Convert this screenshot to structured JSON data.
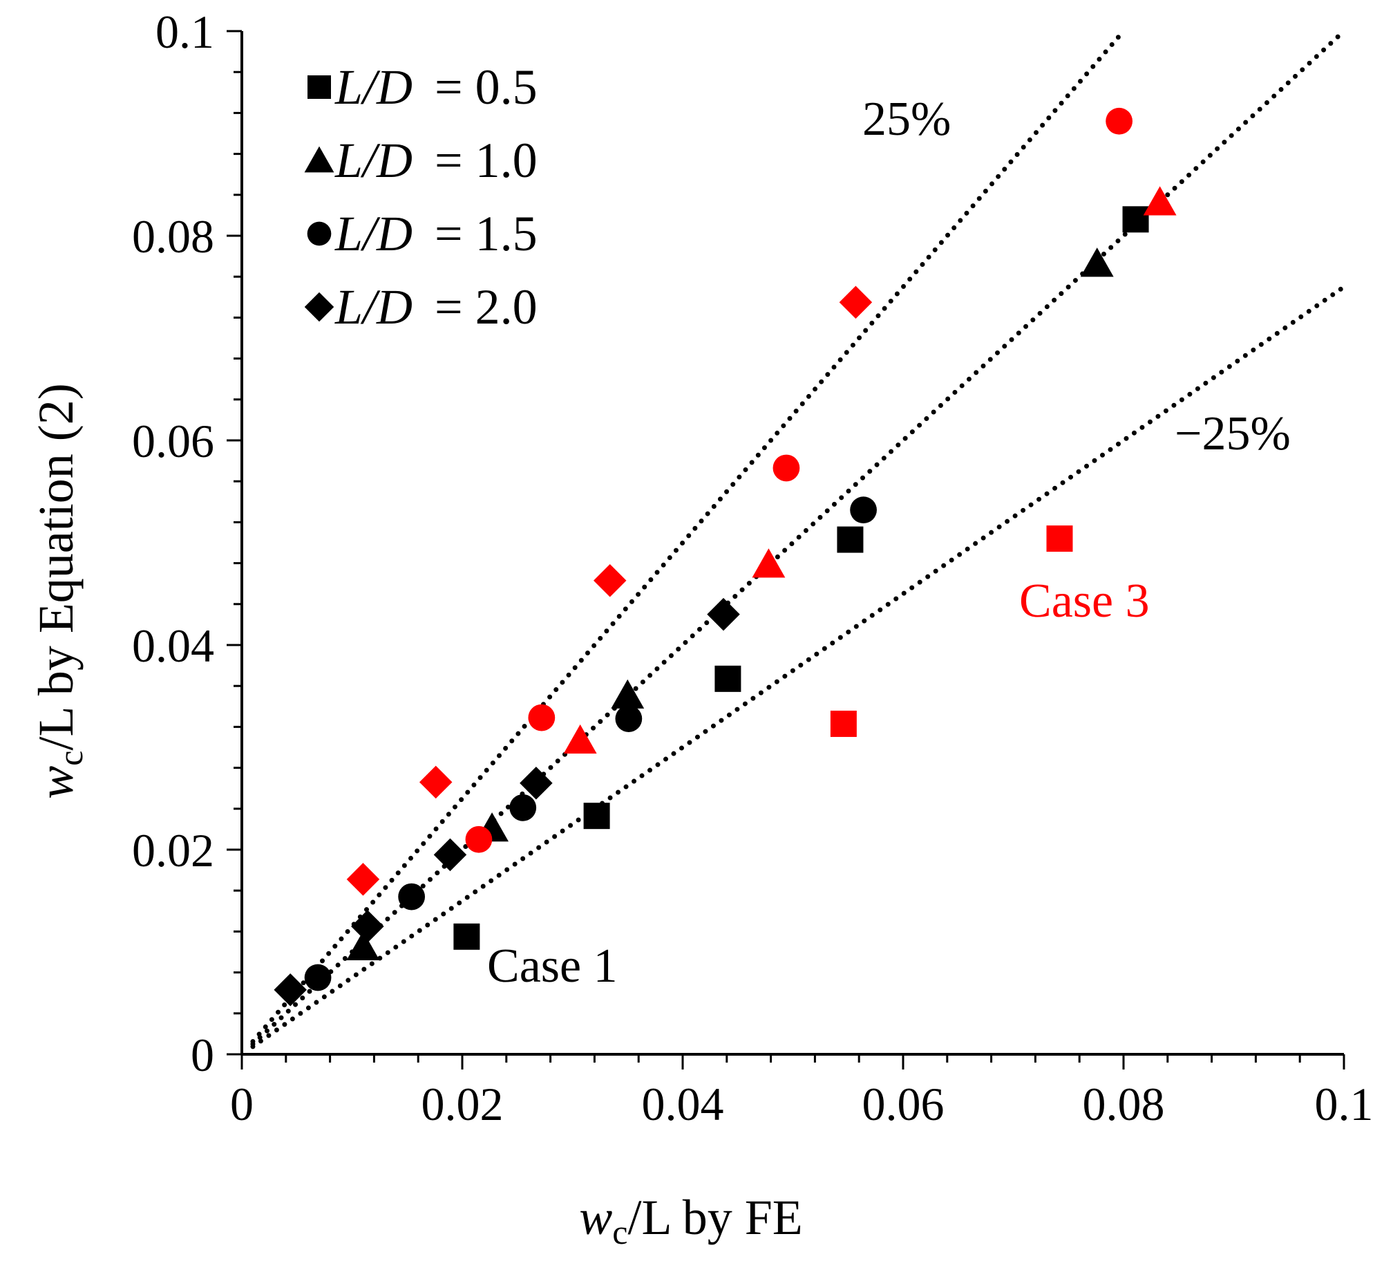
{
  "chart_data": {
    "type": "scatter",
    "title": "",
    "xlabel": {
      "main": "w",
      "sub": "c",
      "rest": "/L by FE"
    },
    "ylabel": {
      "main": "w",
      "sub": "c",
      "rest": "/L by Equation (2)"
    },
    "xlim": [
      0,
      0.1
    ],
    "ylim": [
      0,
      0.1
    ],
    "xticks": [
      "0",
      "0.02",
      "0.04",
      "0.06",
      "0.08",
      "0.1"
    ],
    "yticks": [
      "0",
      "0.02",
      "0.04",
      "0.06",
      "0.08",
      "0.1"
    ],
    "tick_values": [
      0,
      0.02,
      0.04,
      0.06,
      0.08,
      0.1
    ],
    "legend": {
      "position": "top-left",
      "entries": [
        {
          "marker": "square",
          "label": "L/D = 0.5",
          "var": "L/D",
          "value": "= 0.5"
        },
        {
          "marker": "triangle",
          "label": "L/D = 1.0",
          "var": "L/D",
          "value": "= 1.0"
        },
        {
          "marker": "circle",
          "label": "L/D = 1.5",
          "var": "L/D",
          "value": "= 1.5"
        },
        {
          "marker": "diamond",
          "label": "L/D = 2.0",
          "var": "L/D",
          "value": "= 2.0"
        }
      ]
    },
    "reference_lines": [
      {
        "name": "upper-25-percent",
        "label": "25%",
        "slope": 1.25
      },
      {
        "name": "equality",
        "label": "",
        "slope": 1.0
      },
      {
        "name": "lower-25-percent",
        "label": "−25%",
        "slope": 0.75
      }
    ],
    "annotations": [
      {
        "name": "case-1-label",
        "text": "Case 1",
        "color": "#000000"
      },
      {
        "name": "case-3-label",
        "text": "Case 3",
        "color": "#ff0000"
      }
    ],
    "colors": {
      "black": "#000000",
      "red": "#ff0000"
    },
    "series": [
      {
        "name": "L/D = 0.5 (black)",
        "marker": "square",
        "color": "#000000",
        "points": [
          [
            0.0204,
            0.0115
          ],
          [
            0.0322,
            0.0233
          ],
          [
            0.0441,
            0.0367
          ],
          [
            0.0552,
            0.0503
          ],
          [
            0.0811,
            0.0816
          ]
        ]
      },
      {
        "name": "L/D = 0.5 (red)",
        "marker": "square",
        "color": "#ff0000",
        "points": [
          [
            0.0546,
            0.0323
          ],
          [
            0.0742,
            0.0504
          ]
        ]
      },
      {
        "name": "L/D = 1.0 (black)",
        "marker": "triangle",
        "color": "#000000",
        "points": [
          [
            0.011,
            0.0105
          ],
          [
            0.0227,
            0.0221
          ],
          [
            0.035,
            0.0351
          ],
          [
            0.0776,
            0.0773
          ]
        ]
      },
      {
        "name": "L/D = 1.0 (red)",
        "marker": "triangle",
        "color": "#ff0000",
        "points": [
          [
            0.0307,
            0.0307
          ],
          [
            0.0478,
            0.0479
          ],
          [
            0.0833,
            0.0833
          ]
        ]
      },
      {
        "name": "L/D = 1.5 (black)",
        "marker": "circle",
        "color": "#000000",
        "points": [
          [
            0.0069,
            0.0075
          ],
          [
            0.0154,
            0.0154
          ],
          [
            0.0255,
            0.0241
          ],
          [
            0.0351,
            0.0328
          ],
          [
            0.0564,
            0.0532
          ]
        ]
      },
      {
        "name": "L/D = 1.5 (red)",
        "marker": "circle",
        "color": "#ff0000",
        "points": [
          [
            0.0215,
            0.021
          ],
          [
            0.0272,
            0.0329
          ],
          [
            0.0494,
            0.0573
          ],
          [
            0.0796,
            0.0912
          ]
        ]
      },
      {
        "name": "L/D = 2.0 (black)",
        "marker": "diamond",
        "color": "#000000",
        "points": [
          [
            0.0044,
            0.0063
          ],
          [
            0.0114,
            0.0125
          ],
          [
            0.0189,
            0.0195
          ],
          [
            0.0267,
            0.0265
          ],
          [
            0.0437,
            0.043
          ]
        ]
      },
      {
        "name": "L/D = 2.0 (red)",
        "marker": "diamond",
        "color": "#ff0000",
        "points": [
          [
            0.011,
            0.0171
          ],
          [
            0.0176,
            0.0266
          ],
          [
            0.0334,
            0.0463
          ],
          [
            0.0557,
            0.0735
          ]
        ]
      }
    ]
  }
}
